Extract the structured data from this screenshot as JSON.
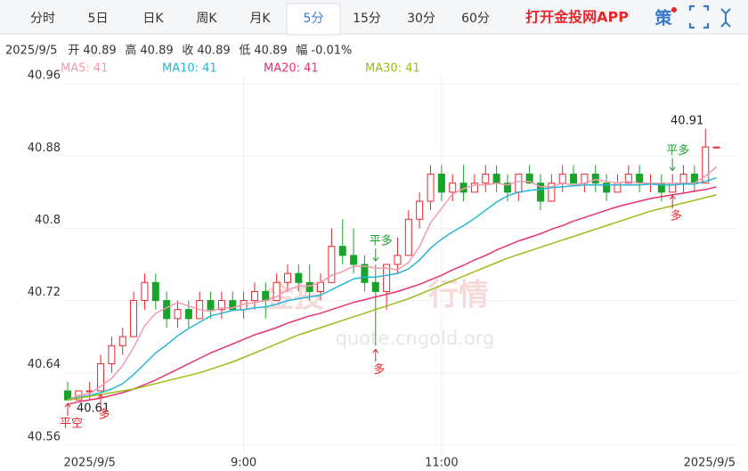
{
  "toolbar": {
    "tabs": [
      "分时",
      "5日",
      "日K",
      "周K",
      "月K",
      "5分",
      "15分",
      "30分",
      "60分"
    ],
    "active_tab": "5分",
    "app_link": "打开金投网APP",
    "strategy_icon": "策"
  },
  "info": {
    "date": "2025/9/5",
    "items": [
      {
        "label": "开",
        "value": "40.89"
      },
      {
        "label": "高",
        "value": "40.89"
      },
      {
        "label": "收",
        "value": "40.89"
      },
      {
        "label": "低",
        "value": "40.89"
      },
      {
        "label": "幅",
        "value": "-0.01%"
      }
    ]
  },
  "watermark": [
    "金投",
    "行情",
    "quote.cngold.org"
  ],
  "chart_data": {
    "type": "candlestick",
    "categories": [
      null,
      null,
      "2025/9/5",
      null,
      null,
      null,
      null,
      null,
      null,
      null,
      null,
      null,
      null,
      null,
      null,
      null,
      "9:00",
      null,
      null,
      null,
      null,
      null,
      null,
      null,
      null,
      null,
      null,
      null,
      null,
      null,
      null,
      null,
      null,
      null,
      "11:00",
      null,
      null,
      null,
      null,
      null,
      null,
      null,
      null,
      null,
      null,
      null,
      null,
      null,
      null,
      null,
      null,
      null,
      null,
      null,
      null,
      null,
      null,
      null,
      null,
      "2025/9/5"
    ],
    "open": [
      40.62,
      40.61,
      40.62,
      40.62,
      40.65,
      40.67,
      40.68,
      40.72,
      40.74,
      40.72,
      40.7,
      40.71,
      40.7,
      40.72,
      40.71,
      40.72,
      40.71,
      40.72,
      40.73,
      40.72,
      40.74,
      40.75,
      40.74,
      40.73,
      40.74,
      40.78,
      40.77,
      40.76,
      40.74,
      40.73,
      40.76,
      40.77,
      40.81,
      40.83,
      40.86,
      40.84,
      40.85,
      40.84,
      40.85,
      40.86,
      40.85,
      40.84,
      40.86,
      40.85,
      40.83,
      40.85,
      40.86,
      40.85,
      40.86,
      40.85,
      40.84,
      40.85,
      40.86,
      40.85,
      40.85,
      40.84,
      40.85,
      40.86,
      40.85,
      40.89
    ],
    "high": [
      40.63,
      40.62,
      40.63,
      40.66,
      40.68,
      40.69,
      40.73,
      40.75,
      40.75,
      40.73,
      40.72,
      40.72,
      40.73,
      40.73,
      40.73,
      40.73,
      40.73,
      40.74,
      40.74,
      40.75,
      40.76,
      40.76,
      40.76,
      40.75,
      40.8,
      40.81,
      40.8,
      40.77,
      40.76,
      40.76,
      40.79,
      40.82,
      40.84,
      40.87,
      40.87,
      40.86,
      40.87,
      40.86,
      40.87,
      40.87,
      40.86,
      40.86,
      40.87,
      40.86,
      40.86,
      40.87,
      40.87,
      40.86,
      40.87,
      40.86,
      40.86,
      40.87,
      40.87,
      40.86,
      40.86,
      40.86,
      40.87,
      40.87,
      40.91,
      40.89
    ],
    "low": [
      40.61,
      40.61,
      40.61,
      40.62,
      40.64,
      40.66,
      40.68,
      40.71,
      40.71,
      40.69,
      40.69,
      40.69,
      40.7,
      40.7,
      40.7,
      40.71,
      40.7,
      40.71,
      40.7,
      40.72,
      40.73,
      40.73,
      40.72,
      40.72,
      40.74,
      40.76,
      40.75,
      40.73,
      40.67,
      40.71,
      40.75,
      40.77,
      40.8,
      40.82,
      40.83,
      40.83,
      40.83,
      40.84,
      40.84,
      40.84,
      40.83,
      40.83,
      40.85,
      40.82,
      40.83,
      40.84,
      40.85,
      40.84,
      40.84,
      40.83,
      40.84,
      40.85,
      40.84,
      40.84,
      40.83,
      40.84,
      40.84,
      40.84,
      40.85,
      40.89
    ],
    "close": [
      40.61,
      40.62,
      40.62,
      40.65,
      40.67,
      40.68,
      40.72,
      40.74,
      40.72,
      40.7,
      40.71,
      40.7,
      40.72,
      40.71,
      40.72,
      40.71,
      40.72,
      40.73,
      40.72,
      40.74,
      40.75,
      40.74,
      40.73,
      40.74,
      40.78,
      40.77,
      40.76,
      40.74,
      40.73,
      40.76,
      40.77,
      40.81,
      40.83,
      40.86,
      40.84,
      40.85,
      40.84,
      40.85,
      40.86,
      40.85,
      40.84,
      40.86,
      40.85,
      40.83,
      40.85,
      40.86,
      40.85,
      40.86,
      40.85,
      40.84,
      40.85,
      40.86,
      40.85,
      40.85,
      40.84,
      40.85,
      40.86,
      40.85,
      40.89,
      40.89
    ],
    "up_color": "#e8262c",
    "down_color": "#1aa32a",
    "series": [
      {
        "name": "MA5: 41",
        "color": "#f39ab0",
        "values": [
          40.61,
          40.615,
          40.617,
          40.625,
          40.634,
          40.648,
          40.668,
          40.692,
          40.706,
          40.712,
          40.718,
          40.714,
          40.71,
          40.708,
          40.712,
          40.712,
          40.716,
          40.718,
          40.72,
          40.724,
          40.732,
          40.736,
          40.736,
          40.74,
          40.748,
          40.752,
          40.758,
          40.758,
          40.756,
          40.756,
          40.754,
          40.762,
          40.78,
          40.806,
          40.822,
          40.838,
          40.844,
          40.848,
          40.848,
          40.85,
          40.848,
          40.852,
          40.852,
          40.846,
          40.846,
          40.85,
          40.848,
          40.85,
          40.854,
          40.852,
          40.85,
          40.852,
          40.85,
          40.85,
          40.85,
          40.85,
          40.85,
          40.85,
          40.858,
          40.868
        ]
      },
      {
        "name": "MA10: 41",
        "color": "#27b6d4",
        "values": [
          40.61,
          40.613,
          40.615,
          40.618,
          40.622,
          40.628,
          40.638,
          40.65,
          40.662,
          40.671,
          40.681,
          40.689,
          40.696,
          40.703,
          40.706,
          40.709,
          40.71,
          40.712,
          40.713,
          40.716,
          40.72,
          40.722,
          40.724,
          40.726,
          40.732,
          40.738,
          40.744,
          40.746,
          40.746,
          40.748,
          40.75,
          40.755,
          40.765,
          40.778,
          40.788,
          40.796,
          40.803,
          40.811,
          40.82,
          40.829,
          40.836,
          40.84,
          40.842,
          40.843,
          40.845,
          40.846,
          40.847,
          40.848,
          40.848,
          40.848,
          40.848,
          40.848,
          40.848,
          40.849,
          40.848,
          40.848,
          40.849,
          40.849,
          40.852,
          40.856
        ]
      },
      {
        "name": "MA20: 41",
        "color": "#e8336f",
        "values": [
          40.605,
          40.608,
          40.61,
          40.612,
          40.615,
          40.618,
          40.622,
          40.627,
          40.632,
          40.638,
          40.644,
          40.65,
          40.656,
          40.662,
          40.667,
          40.672,
          40.677,
          40.682,
          40.686,
          40.69,
          40.695,
          40.699,
          40.703,
          40.706,
          40.71,
          40.714,
          40.718,
          40.721,
          40.724,
          40.727,
          40.73,
          40.734,
          40.738,
          40.743,
          40.748,
          40.754,
          40.759,
          40.765,
          40.77,
          40.776,
          40.781,
          40.786,
          40.79,
          40.794,
          40.799,
          40.803,
          40.808,
          40.812,
          40.816,
          40.82,
          40.824,
          40.827,
          40.83,
          40.833,
          40.835,
          40.837,
          40.839,
          40.841,
          40.843,
          40.846
        ]
      },
      {
        "name": "MA30: 41",
        "color": "#9cbc1c",
        "values": [
          40.61,
          40.612,
          40.614,
          40.616,
          40.618,
          40.62,
          40.622,
          40.625,
          40.628,
          40.631,
          40.634,
          40.637,
          40.64,
          40.644,
          40.648,
          40.652,
          40.657,
          40.662,
          40.667,
          40.672,
          40.677,
          40.682,
          40.686,
          40.69,
          40.694,
          40.698,
          40.702,
          40.706,
          40.71,
          40.714,
          40.718,
          40.722,
          40.727,
          40.732,
          40.737,
          40.742,
          40.747,
          40.752,
          40.757,
          40.762,
          40.767,
          40.771,
          40.775,
          40.779,
          40.783,
          40.787,
          40.791,
          40.795,
          40.799,
          40.803,
          40.807,
          40.811,
          40.815,
          40.819,
          40.822,
          40.825,
          40.828,
          40.831,
          40.834,
          40.837
        ]
      }
    ],
    "ylim": [
      40.55,
      40.97
    ],
    "yticks": [
      40.56,
      40.64,
      40.72,
      40.8,
      40.88,
      40.96
    ],
    "grid": true,
    "max_label": 40.91,
    "min_label": 40.61,
    "signals": [
      "平空",
      "多",
      "平多",
      "多",
      "平多",
      "多"
    ]
  }
}
